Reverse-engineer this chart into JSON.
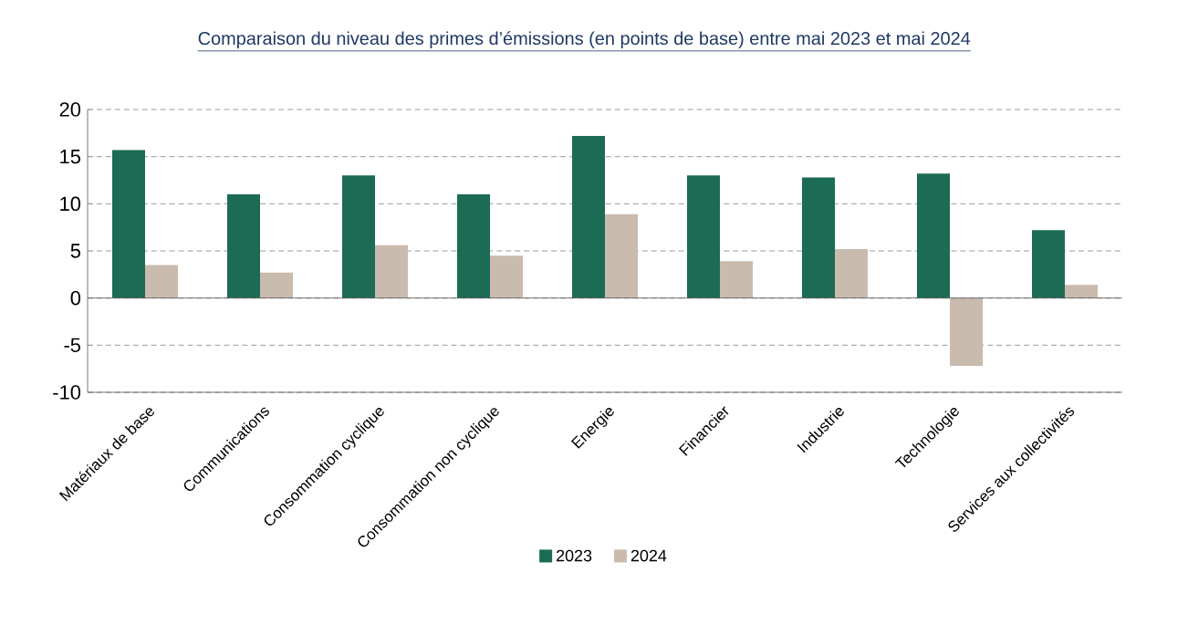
{
  "chart_data": {
    "type": "bar",
    "title": "Comparaison du niveau des primes d’émissions (en points de base) entre mai 2023 et mai 2024",
    "categories": [
      "Matériaux de base",
      "Communications",
      "Consommation cyclique",
      "Consommation non cyclique",
      "Energie",
      "Financier",
      "Industrie",
      "Technologie",
      "Services aux collectivités"
    ],
    "series": [
      {
        "name": "2023",
        "color": "#1c6b55",
        "values": [
          15.7,
          11.0,
          13.0,
          11.0,
          17.2,
          13.0,
          12.8,
          13.2,
          7.2
        ]
      },
      {
        "name": "2024",
        "color": "#c9bbad",
        "values": [
          3.5,
          2.7,
          5.6,
          4.5,
          8.9,
          3.9,
          5.2,
          -7.2,
          1.4
        ]
      }
    ],
    "ylim": [
      -10,
      20
    ],
    "yticks": [
      -10,
      -5,
      0,
      5,
      10,
      15,
      20
    ],
    "grid": "y",
    "legend": "bottom"
  }
}
